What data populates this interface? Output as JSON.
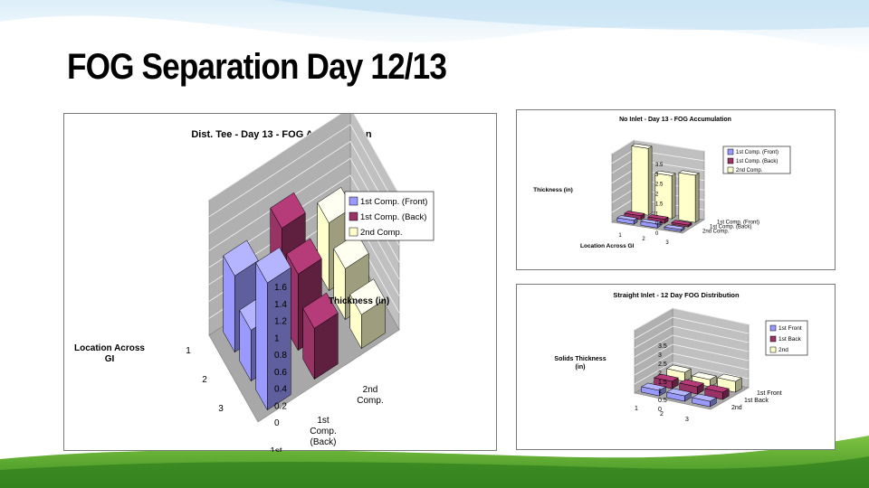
{
  "slide": {
    "title": "FOG Separation Day 12/13"
  },
  "colors": {
    "front": "#9999ff",
    "back": "#993366",
    "second": "#ffffcc",
    "wall": "#c0c0c0",
    "grass": "#5aa82e",
    "sky": "#cfe6f5"
  },
  "chart_data": [
    {
      "type": "bar3d",
      "title": "Dist. Tee - Day 13 - FOG Accumulation",
      "xlabel": "Location Across GI",
      "zlabel": "Thickness (in)",
      "x": [
        "1",
        "2",
        "3"
      ],
      "zticks": [
        "0",
        "0.2",
        "0.4",
        "0.6",
        "0.8",
        "1",
        "1.2",
        "1.4",
        "1.6"
      ],
      "zlim": [
        0,
        1.6
      ],
      "depth_labels": [
        [
          "1st",
          "Comp.",
          "(Front)"
        ],
        [
          "1st",
          "Comp.",
          "(Back)"
        ],
        [
          "2nd",
          "Comp."
        ]
      ],
      "legend_position": "right",
      "series": [
        {
          "name": "1st Comp. (Front)",
          "values": [
            0.9,
            0.6,
            1.5
          ]
        },
        {
          "name": "1st Comp. (Back)",
          "values": [
            1.1,
            0.9,
            0.6
          ]
        },
        {
          "name": "2nd Comp.",
          "values": [
            0.8,
            0.6,
            0.4
          ]
        }
      ]
    },
    {
      "type": "bar3d",
      "title": "No Inlet - Day 13 - FOG Accumulation",
      "xlabel": "Location Across GI",
      "zlabel": "Thickness (in)",
      "x": [
        "1",
        "2",
        "3"
      ],
      "zticks": [
        "0",
        "0.5",
        "1",
        "1.5",
        "2",
        "2.5",
        "3",
        "3.5"
      ],
      "zlim": [
        0,
        3.5
      ],
      "depth_labels": [
        "2nd Comp.",
        "1st Comp. (Back)",
        "1st Comp. (Front)"
      ],
      "legend_position": "right",
      "series": [
        {
          "name": "1st Comp. (Front)",
          "values": [
            0.2,
            0.2,
            0.1
          ]
        },
        {
          "name": "1st Comp. (Back)",
          "values": [
            0.2,
            0.2,
            0.1
          ]
        },
        {
          "name": "2nd Comp.",
          "values": [
            3.4,
            2.2,
            2.4
          ]
        }
      ]
    },
    {
      "type": "bar3d",
      "title": "Straight Inlet - 12 Day FOG Distribution",
      "xlabel": "",
      "zlabel": "Solids Thickness (in)",
      "x": [
        "1",
        "2",
        "3"
      ],
      "zticks": [
        "0",
        "0.5",
        "1",
        "1.5",
        "2",
        "2.5",
        "3",
        "3.5"
      ],
      "zlim": [
        0,
        3.5
      ],
      "depth_labels": [
        "2nd",
        "1st Back",
        "1st Front"
      ],
      "legend_position": "right",
      "series": [
        {
          "name": "1st Front",
          "values": [
            0.3,
            0.3,
            0.3
          ]
        },
        {
          "name": "1st Back",
          "values": [
            0.4,
            0.4,
            0.4
          ]
        },
        {
          "name": "2nd",
          "values": [
            0.5,
            0.4,
            0.6
          ]
        }
      ]
    }
  ]
}
